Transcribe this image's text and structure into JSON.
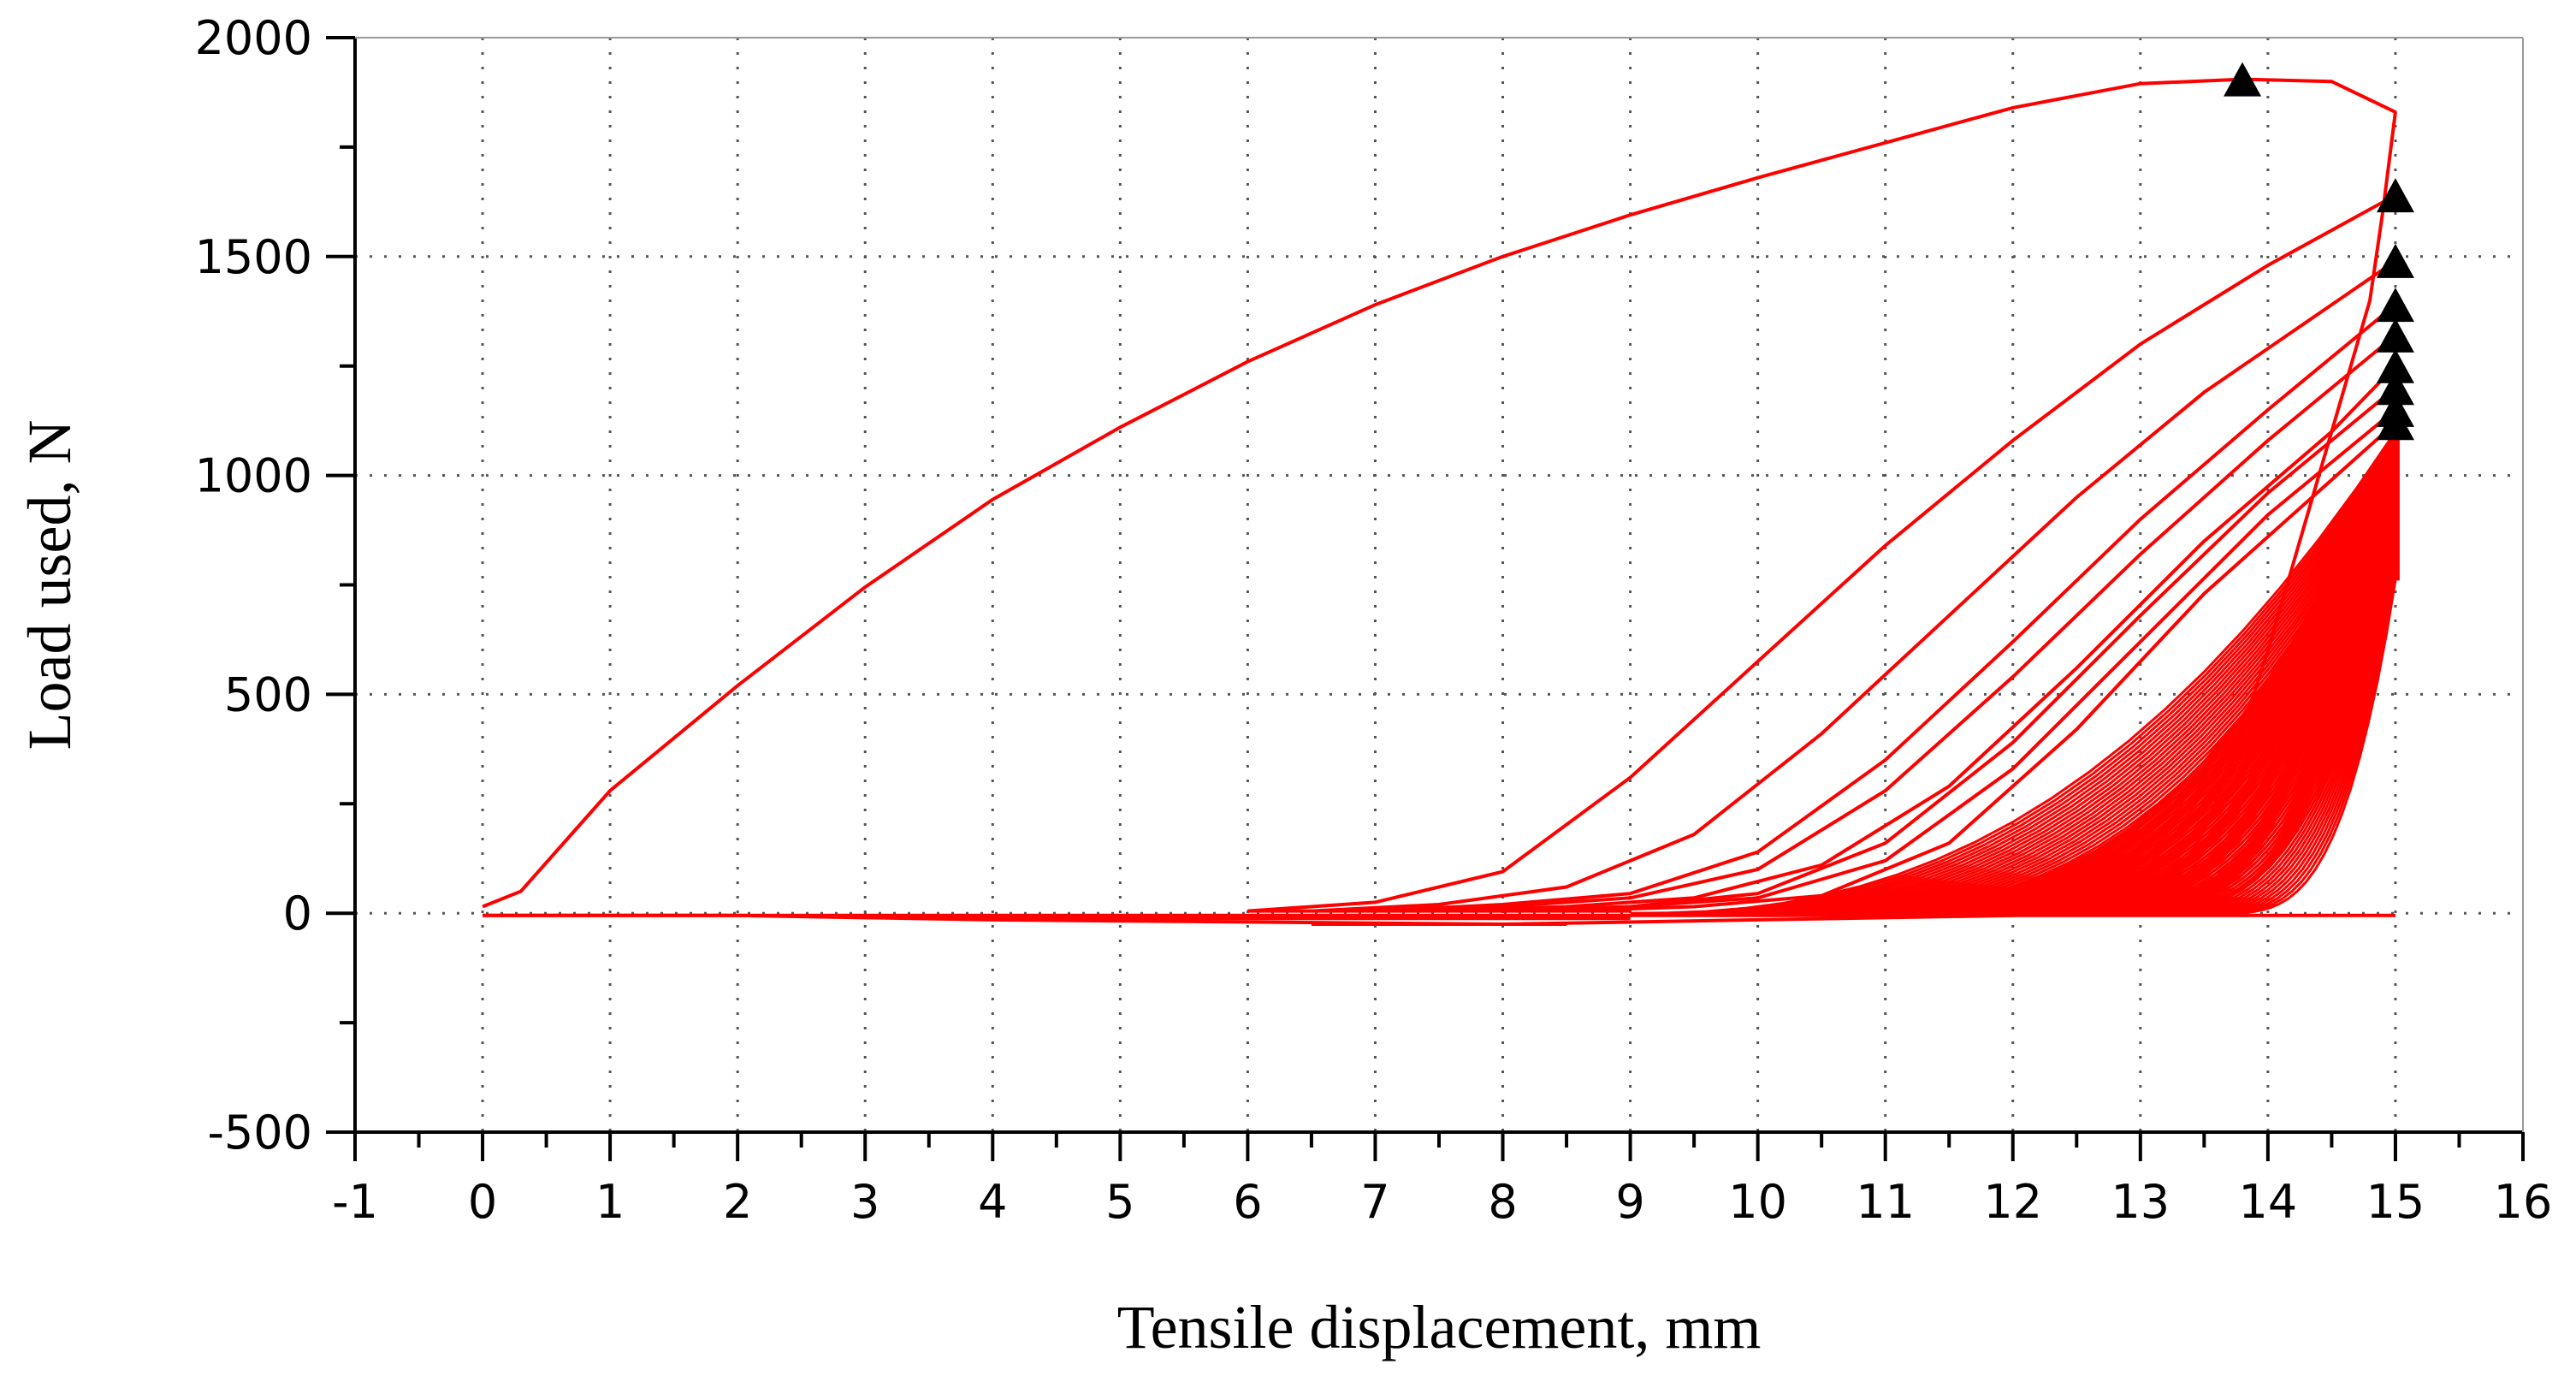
{
  "chart_data": {
    "type": "line",
    "title": "",
    "xlabel": "Tensile displacement, mm",
    "ylabel": "Load used, N",
    "xlim": [
      -1,
      16
    ],
    "ylim": [
      -500,
      2000
    ],
    "x_ticks": [
      -1,
      0,
      1,
      2,
      3,
      4,
      5,
      6,
      7,
      8,
      9,
      10,
      11,
      12,
      13,
      14,
      15,
      16
    ],
    "y_ticks": [
      -500,
      0,
      500,
      1000,
      1500,
      2000
    ],
    "x_minor_step": 0.5,
    "y_minor_step": 250,
    "grid": "dotted",
    "legend": "none",
    "line_color": "#ff0000",
    "marker_color": "#000000",
    "marker": "triangle",
    "series": [
      {
        "cycle": 1,
        "loading": [
          [
            0,
            15
          ],
          [
            0.3,
            50
          ],
          [
            1,
            280
          ],
          [
            2,
            520
          ],
          [
            3,
            745
          ],
          [
            4,
            945
          ],
          [
            5,
            1110
          ],
          [
            6,
            1260
          ],
          [
            7,
            1390
          ],
          [
            8,
            1500
          ],
          [
            9,
            1595
          ],
          [
            10,
            1680
          ],
          [
            11,
            1760
          ],
          [
            12,
            1840
          ],
          [
            13,
            1895
          ],
          [
            13.8,
            1905
          ],
          [
            14.5,
            1900
          ],
          [
            15,
            1830
          ]
        ],
        "unloading": [
          [
            15,
            1830
          ],
          [
            14.9,
            1600
          ],
          [
            14.8,
            1400
          ],
          [
            14.6,
            1200
          ],
          [
            14.4,
            1000
          ],
          [
            14.2,
            800
          ],
          [
            14.0,
            600
          ],
          [
            13.8,
            420
          ],
          [
            13.6,
            260
          ],
          [
            13.4,
            130
          ],
          [
            13.2,
            50
          ],
          [
            13.0,
            10
          ],
          [
            12,
            -5
          ],
          [
            10,
            -15
          ],
          [
            8,
            -25
          ],
          [
            6,
            -20
          ],
          [
            4,
            -15
          ],
          [
            2,
            -5
          ],
          [
            0,
            -5
          ]
        ],
        "peak_marker": [
          13.8,
          1905
        ]
      },
      {
        "cycle": 2,
        "loading": [
          [
            6,
            5
          ],
          [
            7,
            25
          ],
          [
            8,
            95
          ],
          [
            9,
            310
          ],
          [
            10,
            575
          ],
          [
            11,
            840
          ],
          [
            12,
            1080
          ],
          [
            13,
            1300
          ],
          [
            14,
            1480
          ],
          [
            15,
            1640
          ]
        ],
        "peak_marker": [
          15,
          1640
        ]
      },
      {
        "cycle": 3,
        "loading": [
          [
            6.5,
            5
          ],
          [
            7.5,
            20
          ],
          [
            8.5,
            60
          ],
          [
            9.5,
            180
          ],
          [
            10.5,
            410
          ],
          [
            11.5,
            680
          ],
          [
            12.5,
            950
          ],
          [
            13.5,
            1190
          ],
          [
            14.5,
            1390
          ],
          [
            15,
            1490
          ]
        ],
        "peak_marker": [
          15,
          1490
        ]
      },
      {
        "cycle": 4,
        "loading": [
          [
            7,
            5
          ],
          [
            8,
            20
          ],
          [
            9,
            45
          ],
          [
            10,
            140
          ],
          [
            11,
            350
          ],
          [
            12,
            620
          ],
          [
            13,
            900
          ],
          [
            14,
            1150
          ],
          [
            15,
            1390
          ]
        ],
        "peak_marker": [
          15,
          1390
        ]
      },
      {
        "cycle": 5,
        "loading": [
          [
            7,
            5
          ],
          [
            8,
            15
          ],
          [
            9,
            35
          ],
          [
            10,
            100
          ],
          [
            11,
            280
          ],
          [
            12,
            540
          ],
          [
            13,
            820
          ],
          [
            14,
            1080
          ],
          [
            15,
            1320
          ]
        ],
        "peak_marker": [
          15,
          1320
        ]
      },
      {
        "cycle": 6,
        "loading": [
          [
            7.5,
            5
          ],
          [
            8.5,
            15
          ],
          [
            9.5,
            35
          ],
          [
            10.5,
            110
          ],
          [
            11.5,
            290
          ],
          [
            12.5,
            560
          ],
          [
            13.5,
            850
          ],
          [
            14.5,
            1100
          ],
          [
            15,
            1250
          ]
        ],
        "peak_marker": [
          15,
          1250
        ]
      },
      {
        "cycle": 7,
        "loading": [
          [
            8,
            5
          ],
          [
            9,
            15
          ],
          [
            10,
            45
          ],
          [
            11,
            160
          ],
          [
            12,
            390
          ],
          [
            13,
            680
          ],
          [
            14,
            960
          ],
          [
            15,
            1200
          ]
        ],
        "peak_marker": [
          15,
          1200
        ]
      },
      {
        "cycle": 8,
        "loading": [
          [
            8,
            5
          ],
          [
            9,
            15
          ],
          [
            10,
            35
          ],
          [
            11,
            120
          ],
          [
            12,
            330
          ],
          [
            13,
            620
          ],
          [
            14,
            910
          ],
          [
            15,
            1150
          ]
        ],
        "peak_marker": [
          15,
          1150
        ]
      },
      {
        "cycle": 9,
        "loading": [
          [
            8.5,
            5
          ],
          [
            9.5,
            15
          ],
          [
            10.5,
            40
          ],
          [
            11.5,
            160
          ],
          [
            12.5,
            420
          ],
          [
            13.5,
            730
          ],
          [
            14.5,
            990
          ],
          [
            15,
            1120
          ]
        ],
        "peak_marker": [
          15,
          1120
        ]
      }
    ],
    "dense_band": {
      "description_note": "",
      "min_peak": 760,
      "max_peak": 1100
    }
  }
}
